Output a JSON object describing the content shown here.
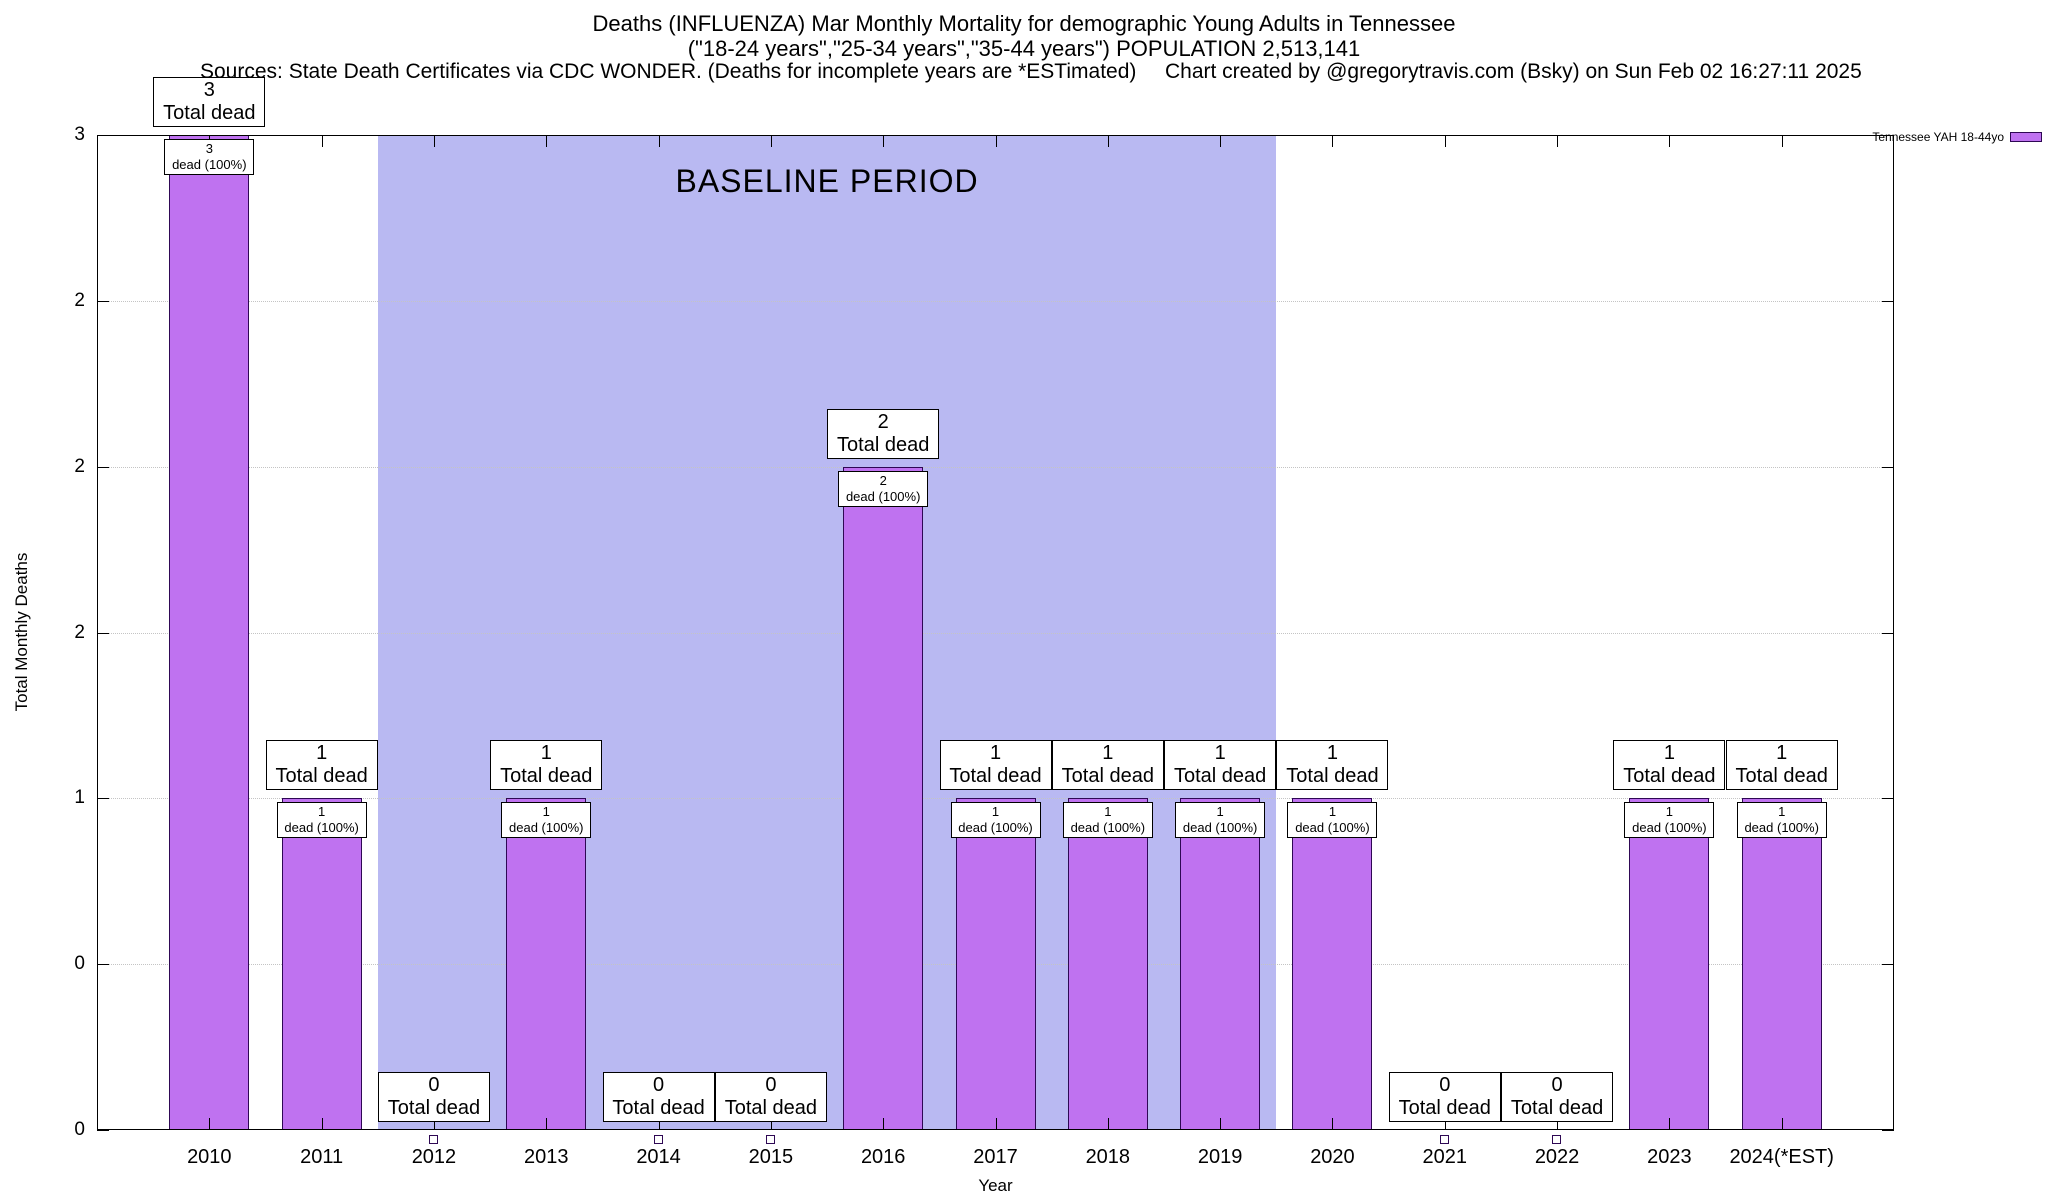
{
  "header": {
    "title_line1": "Deaths (INFLUENZA) Mar Monthly Mortality for demographic Young Adults in Tennessee",
    "title_line2": "(\"18-24 years\",\"25-34 years\",\"35-44 years\") POPULATION 2,513,141",
    "sources": "Sources: State Death Certificates via CDC WONDER. (Deaths for incomplete years are *ESTimated)",
    "credit": "Chart created by @gregorytravis.com (Bsky) on Sun Feb 02 16:27:11 2025"
  },
  "chart_data": {
    "type": "bar",
    "title": "Deaths (INFLUENZA) Mar Monthly Mortality for demographic Young Adults in Tennessee",
    "subtitle": "(\"18-24 years\",\"25-34 years\",\"35-44 years\") POPULATION 2,513,141",
    "xlabel": "Year",
    "ylabel": "Total Monthly Deaths",
    "categories": [
      "2010",
      "2011",
      "2012",
      "2013",
      "2014",
      "2015",
      "2016",
      "2017",
      "2018",
      "2019",
      "2020",
      "2021",
      "2022",
      "2023",
      "2024(*EST)"
    ],
    "values": [
      3,
      1,
      0,
      1,
      0,
      0,
      2,
      1,
      1,
      1,
      1,
      0,
      0,
      1,
      1
    ],
    "ylim": [
      0,
      3
    ],
    "ytick_values": [
      0,
      0.5,
      1,
      1.5,
      2,
      2.5,
      3
    ],
    "ytick_labels": [
      "0",
      "0",
      "1",
      "2",
      "2",
      "2",
      "3"
    ],
    "bar_total_label": "Total dead",
    "bar_inner_label": "dead (100%)",
    "legend": [
      {
        "label": "Tennessee YAH 18-44yo",
        "color": "#bf72f0"
      }
    ],
    "legend_position": "top-right-outside",
    "grid": true,
    "baseline_region": {
      "label": "BASELINE PERIOD",
      "from_index": 1.5,
      "to_index": 9.5,
      "color": "#b9b9f2"
    },
    "bar_color": "#bf72f0",
    "bar_border": "#2e0854"
  }
}
